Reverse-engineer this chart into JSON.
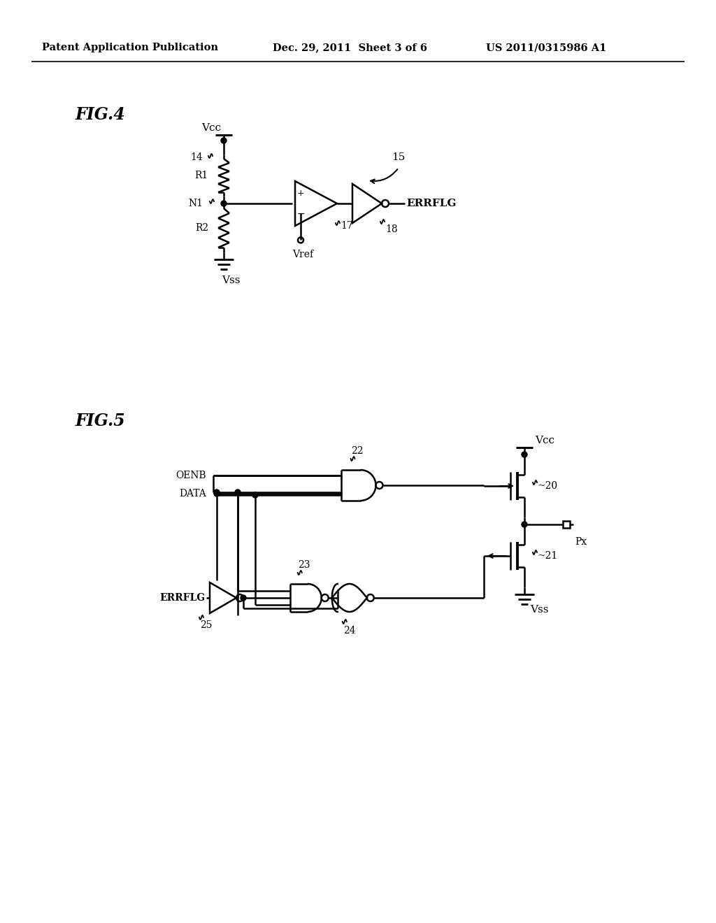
{
  "bg_color": "#ffffff",
  "line_color": "#000000",
  "header_left": "Patent Application Publication",
  "header_mid": "Dec. 29, 2011  Sheet 3 of 6",
  "header_right": "US 2011/0315986 A1"
}
